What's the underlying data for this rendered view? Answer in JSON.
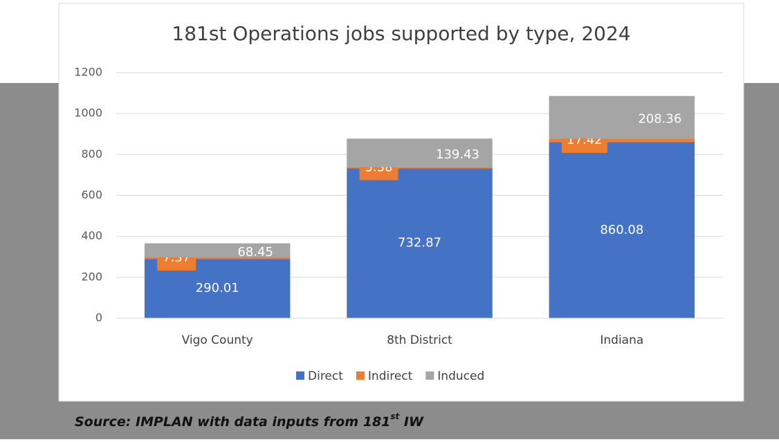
{
  "chart_data": {
    "type": "stacked_bar",
    "title": "181st Operations jobs supported by type, 2024",
    "categories": [
      "Vigo County",
      "8th District",
      "Indiana"
    ],
    "series": [
      {
        "name": "Direct",
        "color": "#4472c4",
        "values": [
          290.01,
          732.87,
          860.08
        ]
      },
      {
        "name": "Indirect",
        "color": "#ed7d31",
        "values": [
          7.37,
          5.38,
          17.42
        ]
      },
      {
        "name": "Induced",
        "color": "#a5a5a5",
        "values": [
          68.45,
          139.43,
          208.36
        ]
      }
    ],
    "ylim": [
      0,
      1200
    ],
    "yticks": [
      0,
      200,
      400,
      600,
      800,
      1000,
      1200
    ],
    "grid": true,
    "legend": "bottom"
  },
  "source": [
    "Source: IMPLAN with data inputs from 181",
    "st",
    " IW"
  ]
}
